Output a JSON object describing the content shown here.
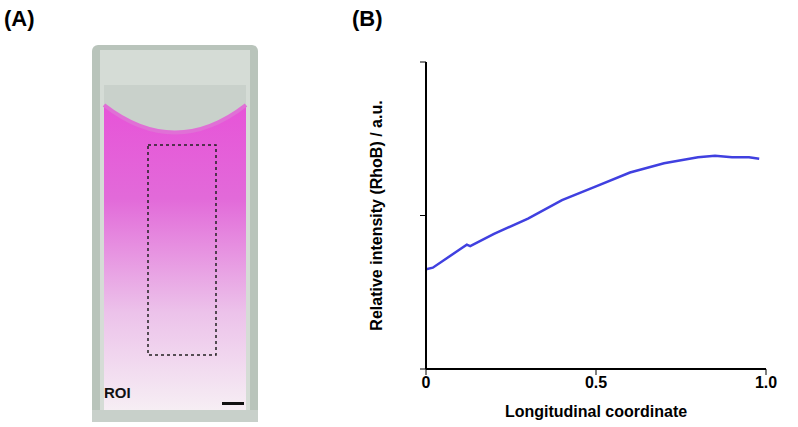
{
  "panels": {
    "A": {
      "letter": "(A)",
      "roi_label": "ROI"
    },
    "B": {
      "letter": "(B)"
    }
  },
  "chart_data": {
    "type": "line",
    "x_label": "Longitudinal coordinate",
    "y_label": "Relative intensity (RhoB) / a.u.",
    "x": [
      0,
      0.02,
      0.06,
      0.1,
      0.12,
      0.13,
      0.2,
      0.3,
      0.4,
      0.5,
      0.6,
      0.7,
      0.8,
      0.85,
      0.9,
      0.95,
      0.98
    ],
    "series": [
      {
        "name": "RhoB",
        "color": "#4040e0",
        "values": [
          0.65,
          0.66,
          0.72,
          0.78,
          0.81,
          0.8,
          0.88,
          0.98,
          1.1,
          1.19,
          1.28,
          1.34,
          1.38,
          1.39,
          1.38,
          1.38,
          1.37
        ]
      }
    ],
    "xlim": [
      0,
      1
    ],
    "xticks": [
      0,
      0.5,
      {
        "value": 1,
        "label": "1.0"
      }
    ],
    "ylim": [
      0,
      2
    ],
    "yticks": [
      0,
      1,
      2
    ],
    "tick_labels": "x",
    "grid": false
  }
}
